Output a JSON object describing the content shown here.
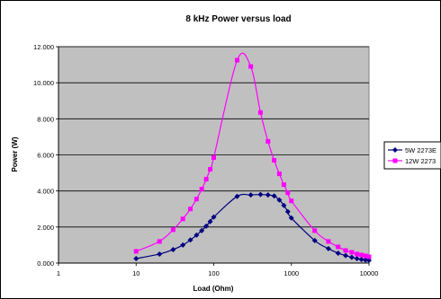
{
  "chart_data": {
    "type": "line",
    "title": "8 kHz Power versus load",
    "xlabel": "Load (Ohm)",
    "ylabel": "Power (W)",
    "x_scale": "log",
    "xlim": [
      1,
      10000
    ],
    "ylim": [
      0,
      12
    ],
    "x_ticks": [
      1,
      10,
      100,
      1000,
      10000
    ],
    "x_tick_labels": [
      "1",
      "10",
      "100",
      "1000",
      "10000"
    ],
    "y_ticks": [
      0,
      2,
      4,
      6,
      8,
      10,
      12
    ],
    "y_tick_labels": [
      "0.000",
      "2.000",
      "4.000",
      "6.000",
      "8.000",
      "10.000",
      "12.000"
    ],
    "grid": "horizontal",
    "plot_background": "#c0c0c0",
    "legend_position": "right",
    "series": [
      {
        "name": "5W 2273E",
        "color": "#000080",
        "marker": "diamond",
        "x": [
          10,
          20,
          30,
          40,
          50,
          60,
          70,
          80,
          90,
          100,
          200,
          300,
          400,
          500,
          600,
          700,
          800,
          900,
          1000,
          2000,
          3000,
          4000,
          5000,
          6000,
          7000,
          8000,
          9000,
          10000
        ],
        "y": [
          0.25,
          0.5,
          0.75,
          1.0,
          1.28,
          1.55,
          1.8,
          2.05,
          2.3,
          2.55,
          3.7,
          3.78,
          3.8,
          3.78,
          3.72,
          3.5,
          3.2,
          2.85,
          2.5,
          1.25,
          0.8,
          0.55,
          0.42,
          0.32,
          0.25,
          0.2,
          0.17,
          0.15
        ]
      },
      {
        "name": "12W  2273",
        "color": "#ff00ff",
        "marker": "square",
        "x": [
          10,
          20,
          30,
          40,
          50,
          60,
          70,
          80,
          90,
          100,
          200,
          300,
          400,
          500,
          600,
          700,
          800,
          900,
          1000,
          2000,
          3000,
          4000,
          5000,
          6000,
          7000,
          8000,
          9000,
          10000
        ],
        "y": [
          0.65,
          1.2,
          1.85,
          2.45,
          3.0,
          3.55,
          4.1,
          4.65,
          5.2,
          5.85,
          11.25,
          10.9,
          8.35,
          6.75,
          5.7,
          4.95,
          4.35,
          3.9,
          3.45,
          1.8,
          1.2,
          0.9,
          0.7,
          0.6,
          0.5,
          0.45,
          0.4,
          0.35
        ]
      }
    ]
  }
}
